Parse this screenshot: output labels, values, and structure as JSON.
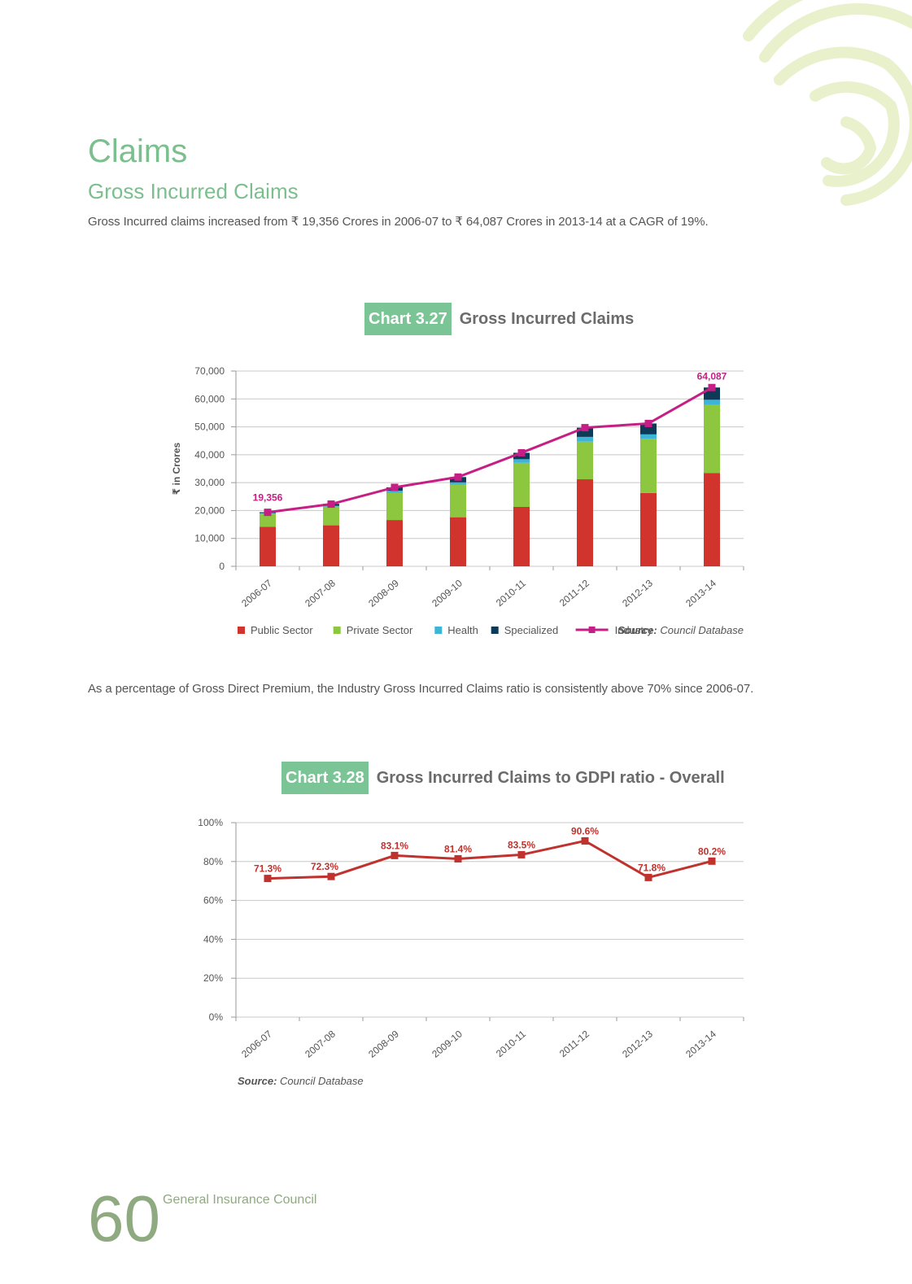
{
  "section": {
    "title": "Claims",
    "subtitle": "Gross Incurred Claims",
    "para1": "Gross Incurred claims increased from ₹ 19,356 Crores in 2006-07 to ₹ 64,087 Crores in 2013-14 at a CAGR of 19%.",
    "para2": "As a percentage of Gross Direct Premium, the Industry Gross Incurred Claims ratio is consistently above 70% since 2006-07."
  },
  "chart_data": [
    {
      "type": "bar",
      "tag": "Chart 3.27",
      "title": "Gross Incurred Claims",
      "ylabel": "₹ in Crores",
      "xlabel": "",
      "categories": [
        "2006-07",
        "2007-08",
        "2008-09",
        "2009-10",
        "2010-11",
        "2011-12",
        "2012-13",
        "2013-14"
      ],
      "ylim": [
        0,
        70000
      ],
      "yticks": [
        0,
        10000,
        20000,
        30000,
        40000,
        50000,
        60000,
        70000
      ],
      "ytick_labels": [
        "0",
        "10,000",
        "20,000",
        "30,000",
        "40,000",
        "50,000",
        "60,000",
        "70,000"
      ],
      "stacked": true,
      "series": [
        {
          "name": "Public Sector",
          "kind": "bar",
          "color": "#d0342c",
          "values": [
            14200,
            14700,
            16600,
            17600,
            21300,
            31200,
            26300,
            33400
          ]
        },
        {
          "name": "Private Sector",
          "kind": "bar",
          "color": "#8dc63f",
          "values": [
            4700,
            6700,
            9800,
            11600,
            15800,
            13500,
            19400,
            24400
          ]
        },
        {
          "name": "Health",
          "kind": "bar",
          "color": "#3db5d9",
          "values": [
            200,
            300,
            700,
            900,
            1300,
            1700,
            1600,
            1900
          ]
        },
        {
          "name": "Specialized",
          "kind": "bar",
          "color": "#0c3a57",
          "values": [
            300,
            700,
            1200,
            1900,
            2300,
            3300,
            3900,
            4400
          ]
        },
        {
          "name": "Industry",
          "kind": "line",
          "color": "#c51f85",
          "values": [
            19356,
            22300,
            28300,
            32000,
            40700,
            49700,
            51200,
            64087
          ]
        }
      ],
      "data_labels": [
        {
          "category": "2006-07",
          "text": "19,356"
        },
        {
          "category": "2013-14",
          "text": "64,087"
        }
      ],
      "legend_position": "bottom",
      "grid": true,
      "source_label": "Source:",
      "source_text": "Council Database"
    },
    {
      "type": "line",
      "tag": "Chart 3.28",
      "title": "Gross Incurred Claims to GDPI ratio - Overall",
      "ylabel": "",
      "xlabel": "",
      "categories": [
        "2006-07",
        "2007-08",
        "2008-09",
        "2009-10",
        "2010-11",
        "2011-12",
        "2012-13",
        "2013-14"
      ],
      "ylim": [
        0,
        100
      ],
      "yticks": [
        0,
        20,
        40,
        60,
        80,
        100
      ],
      "ytick_labels": [
        "0%",
        "20%",
        "40%",
        "60%",
        "80%",
        "100%"
      ],
      "series": [
        {
          "name": "",
          "kind": "line",
          "color": "#c0322d",
          "values": [
            71.3,
            72.3,
            83.1,
            81.4,
            83.5,
            90.6,
            71.8,
            80.2
          ]
        }
      ],
      "data_labels": [
        "71.3%",
        "72.3%",
        "83.1%",
        "81.4%",
        "83.5%",
        "90.6%",
        "71.8%",
        "80.2%"
      ],
      "grid": true,
      "source_label": "Source:",
      "source_text": "Council Database"
    }
  ],
  "footer": {
    "page_number": "60",
    "org": "General Insurance Council"
  },
  "colors": {
    "accent_green": "#7bbf8e",
    "tag_green": "#7bc496",
    "footer_green": "#8faa80",
    "deco_arcs": "#e9f1cc"
  }
}
